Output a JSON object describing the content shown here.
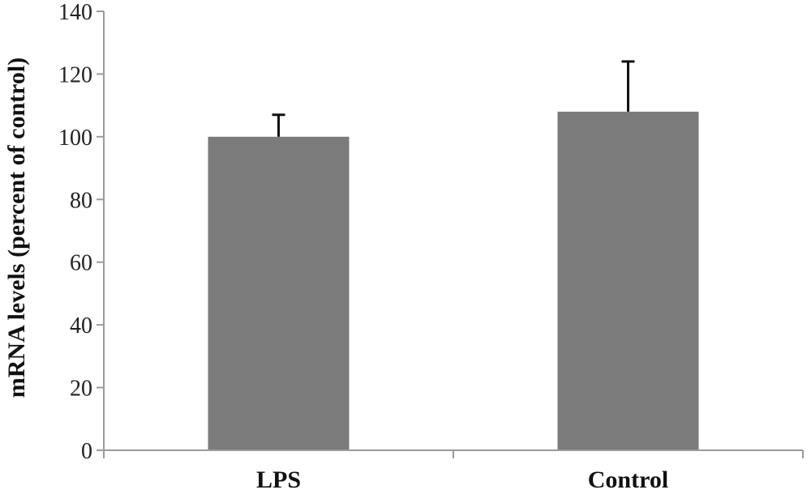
{
  "chart_data": {
    "type": "bar",
    "title": "",
    "xlabel": "",
    "ylabel": "mRNA levels (percent of control)",
    "ylim": [
      0,
      140
    ],
    "yticks": [
      0,
      20,
      40,
      60,
      80,
      100,
      120,
      140
    ],
    "categories": [
      "LPS",
      "Control"
    ],
    "values": [
      100,
      108
    ],
    "errors": [
      7,
      16
    ],
    "grid": false,
    "legend": "none",
    "bar_color": "#7a7b7a",
    "axis_color": "#9a9a9a",
    "error_bar_color": "#111111"
  }
}
